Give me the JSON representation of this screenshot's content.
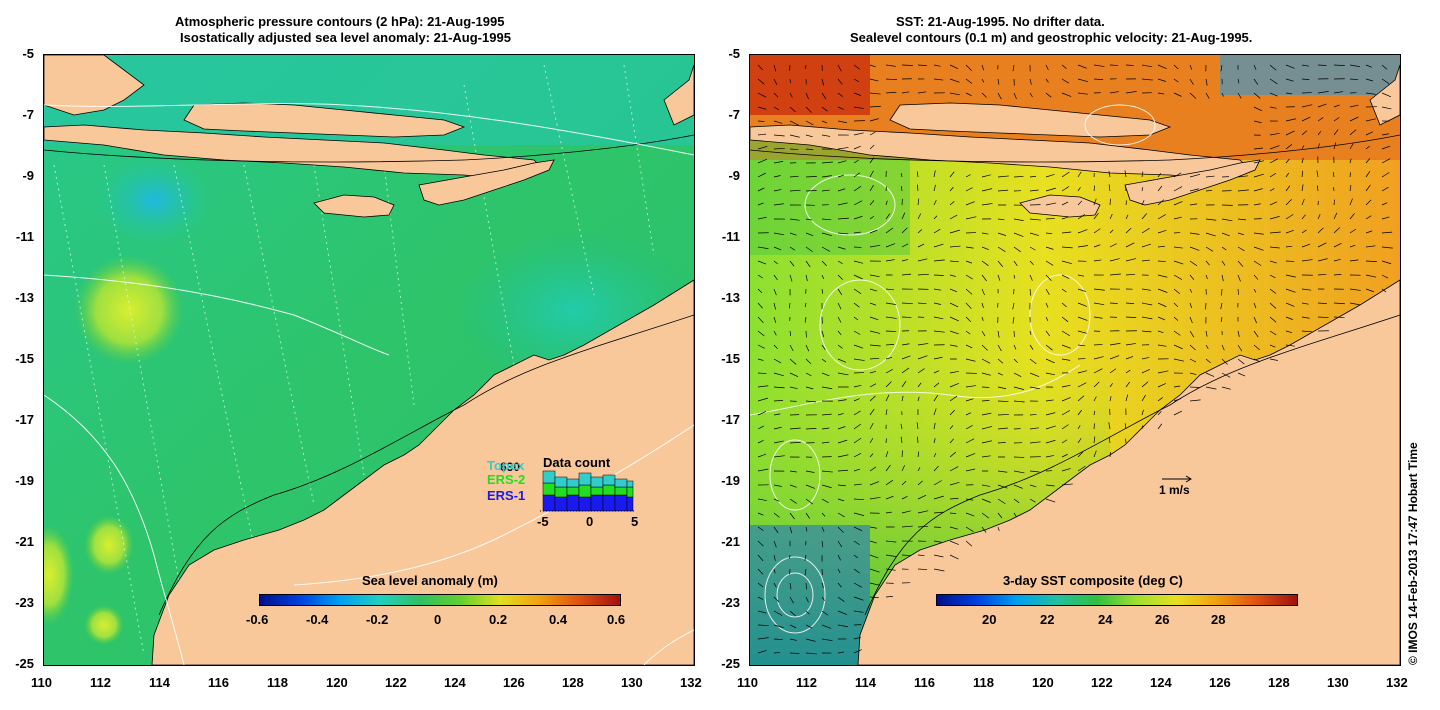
{
  "left_panel": {
    "title_line1": "Atmospheric pressure contours (2 hPa): 21-Aug-1995",
    "title_line2": "Isostatically adjusted sea level anomaly: 21-Aug-1995",
    "colorbar_label": "Sea level anomaly (m)",
    "colorbar_ticks": [
      "-0.6",
      "-0.4",
      "-0.2",
      "0",
      "0.2",
      "0.4",
      "0.6"
    ],
    "legend": {
      "title": "Data count",
      "number": "630",
      "items": [
        {
          "label": "Topex",
          "color": "#33cccc"
        },
        {
          "label": "ERS-2",
          "color": "#22dd22"
        },
        {
          "label": "ERS-1",
          "color": "#1a1aee"
        }
      ],
      "axis_ticks": [
        "-5",
        "0",
        "5"
      ]
    }
  },
  "right_panel": {
    "title_line1": "SST: 21-Aug-1995. No drifter data.",
    "title_line2": "Sealevel contours (0.1 m) and geostrophic velocity: 21-Aug-1995.",
    "colorbar_label": "3-day SST composite (deg C)",
    "colorbar_ticks": [
      "20",
      "22",
      "24",
      "26",
      "28"
    ],
    "scale_label": "1 m/s"
  },
  "axes": {
    "x_ticks": [
      "110",
      "112",
      "114",
      "116",
      "118",
      "120",
      "122",
      "124",
      "126",
      "128",
      "130",
      "132"
    ],
    "y_ticks": [
      "-5",
      "-7",
      "-9",
      "-11",
      "-13",
      "-15",
      "-17",
      "-19",
      "-21",
      "-23",
      "-25"
    ]
  },
  "copyright": "© IMOS 14-Feb-2013 17:47 Hobart Time",
  "colors": {
    "land": "#f9c89a",
    "ocean_left": "#22bb66",
    "ocean_right": "#e8e020"
  }
}
